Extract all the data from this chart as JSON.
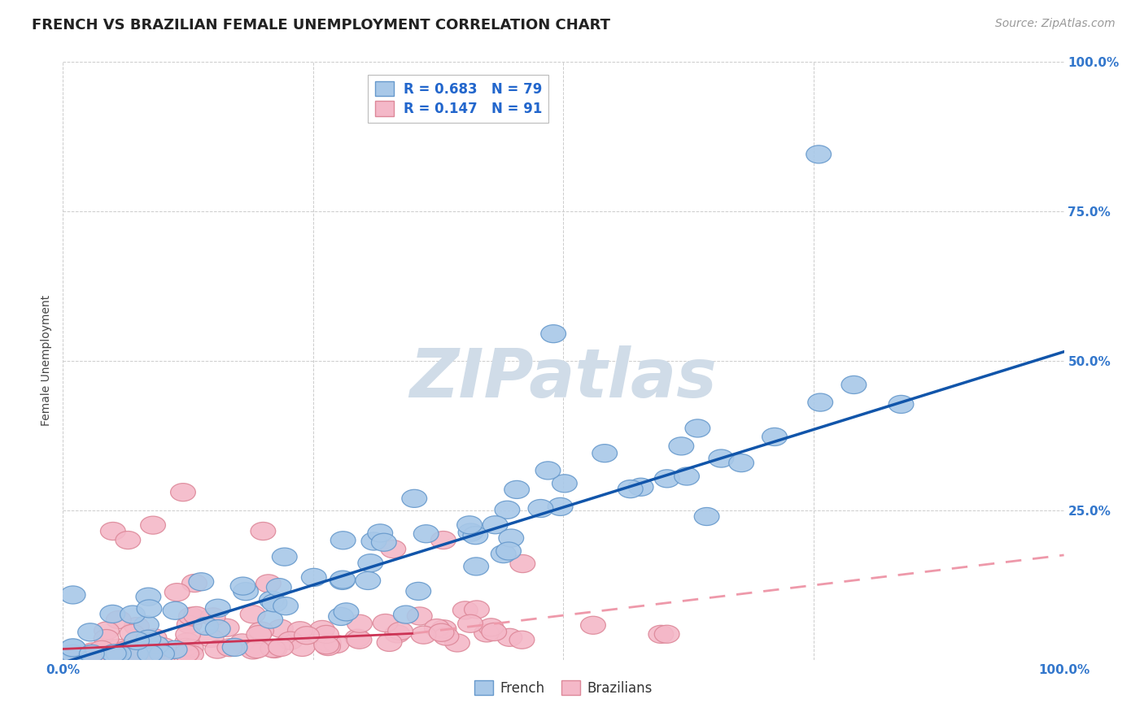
{
  "title": "FRENCH VS BRAZILIAN FEMALE UNEMPLOYMENT CORRELATION CHART",
  "source": "Source: ZipAtlas.com",
  "ylabel": "Female Unemployment",
  "xlim": [
    0.0,
    1.0
  ],
  "ylim": [
    0.0,
    1.0
  ],
  "french_color": "#a8c8e8",
  "french_edge": "#6699cc",
  "brazilian_color": "#f4b8c8",
  "brazilian_edge": "#dd8899",
  "trendline_french_color": "#1155aa",
  "trendline_braz_solid_color": "#cc3355",
  "trendline_braz_dashed_color": "#ee99aa",
  "french_R": "0.683",
  "french_N": "79",
  "brazilian_R": "0.147",
  "brazilian_N": "91",
  "legend_text_color": "#2266cc",
  "title_fontsize": 13,
  "axis_label_fontsize": 10,
  "tick_fontsize": 11,
  "source_fontsize": 10,
  "watermark_color": "#d0dce8",
  "right_tick_color": "#3377cc"
}
